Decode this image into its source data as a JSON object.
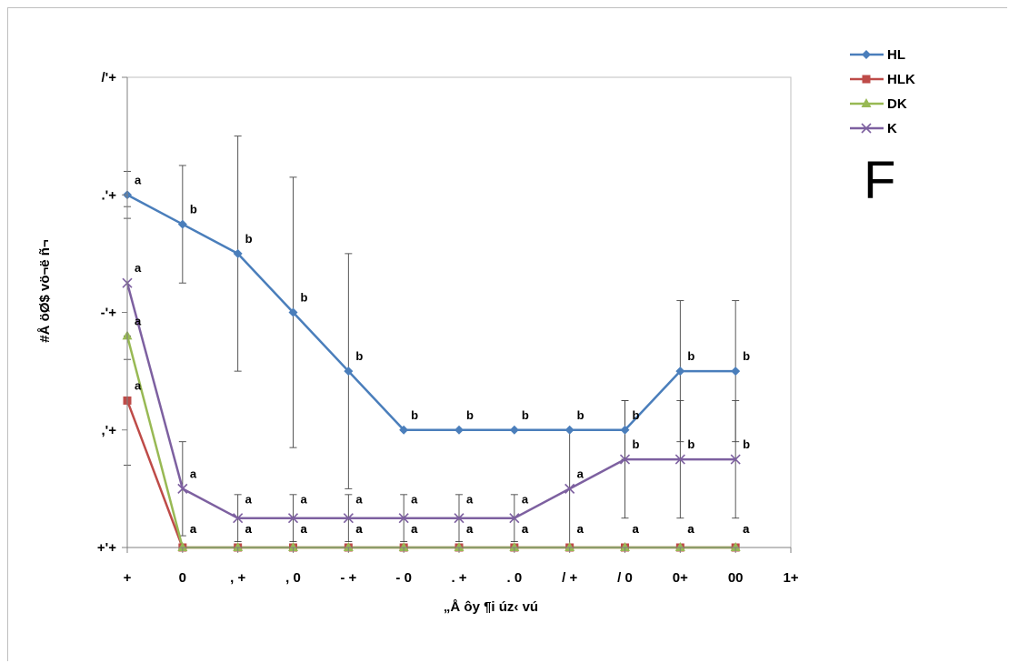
{
  "chart_data": {
    "type": "line",
    "panel_label": "F",
    "xlabel": "„Å ôy ¶i úz‹ vú",
    "ylabel": "#Å öØ$ vö¬ë ñ¬",
    "xlim": [
      0,
      120
    ],
    "ylim": [
      0,
      60
    ],
    "x_ticks": [
      {
        "value": 0,
        "label": "+"
      },
      {
        "value": 10,
        "label": "0"
      },
      {
        "value": 20,
        "label": ", +"
      },
      {
        "value": 30,
        "label": ", 0"
      },
      {
        "value": 40,
        "label": "- +"
      },
      {
        "value": 50,
        "label": "- 0"
      },
      {
        "value": 60,
        "label": ". +"
      },
      {
        "value": 70,
        "label": ". 0"
      },
      {
        "value": 80,
        "label": "/ +"
      },
      {
        "value": 90,
        "label": "/ 0"
      },
      {
        "value": 100,
        "label": "0+"
      },
      {
        "value": 110,
        "label": "00"
      },
      {
        "value": 120,
        "label": "1+"
      }
    ],
    "y_ticks": [
      {
        "value": 0,
        "label": "+'+"
      },
      {
        "value": 20,
        "label": ",'+"
      },
      {
        "value": 40,
        "label": "-'+"
      },
      {
        "value": 60,
        "label": ".'+"
      },
      {
        "value": 80,
        "label": "/'+"
      }
    ],
    "grid": false,
    "legend_position": "top-right",
    "x": [
      0,
      10,
      20,
      30,
      40,
      50,
      60,
      70,
      80,
      90,
      100,
      110
    ],
    "series": [
      {
        "name": "HL",
        "color": "#4a7ebb",
        "marker": "diamond",
        "values": [
          60,
          55,
          50,
          40,
          30,
          20,
          20,
          20,
          20,
          20,
          30,
          30
        ],
        "err": [
          4,
          10,
          20,
          23,
          20,
          0,
          0,
          0,
          0,
          5,
          12,
          12
        ],
        "labels": [
          "a",
          "b",
          "b",
          "b",
          "b",
          "b",
          "b",
          "b",
          "b",
          "b",
          "b",
          "b"
        ]
      },
      {
        "name": "HLK",
        "color": "#be4b48",
        "marker": "square",
        "values": [
          25,
          0,
          0,
          0,
          0,
          0,
          0,
          0,
          0,
          0,
          0,
          0
        ],
        "err": [
          11,
          0,
          0,
          0,
          0,
          0,
          0,
          0,
          0,
          0,
          0,
          0
        ],
        "labels": [
          "a",
          "a",
          "a",
          "a",
          "a",
          "a",
          "a",
          "a",
          "a",
          "a",
          "a",
          "a"
        ]
      },
      {
        "name": "DK",
        "color": "#98b954",
        "marker": "triangle",
        "values": [
          36,
          0,
          0,
          0,
          0,
          0,
          0,
          0,
          0,
          0,
          0,
          0
        ],
        "err": [
          0,
          0,
          0,
          0,
          0,
          0,
          0,
          0,
          0,
          0,
          0,
          0
        ],
        "labels": [
          "a",
          "a",
          "a",
          "a",
          "a",
          "a",
          "a",
          "a",
          "a",
          "a",
          "a",
          "a"
        ]
      },
      {
        "name": "K",
        "color": "#7d60a0",
        "marker": "x",
        "values": [
          45,
          10,
          5,
          5,
          5,
          5,
          5,
          5,
          10,
          15,
          15,
          15
        ],
        "err": [
          13,
          8,
          4,
          4,
          4,
          4,
          4,
          4,
          10,
          10,
          10,
          10
        ],
        "labels": [
          "a",
          "a",
          "a",
          "a",
          "a",
          "a",
          "a",
          "a",
          "a",
          "b",
          "b",
          "b"
        ]
      }
    ]
  }
}
